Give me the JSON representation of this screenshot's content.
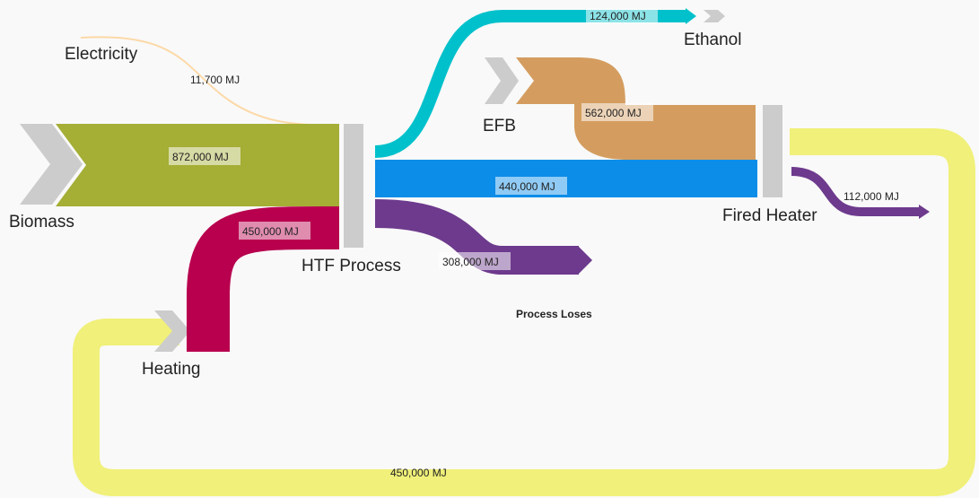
{
  "nodes": [
    {
      "label": "Electricity"
    },
    {
      "label": "Biomass"
    },
    {
      "label": "HTF Process"
    },
    {
      "label": "EFB"
    },
    {
      "label": "Ethanol"
    },
    {
      "label": "Fired Heater"
    },
    {
      "label": "Heating"
    },
    {
      "label": "Process Loses"
    }
  ],
  "links": [
    {
      "label": "11,700 MJ"
    },
    {
      "label": "872,000 MJ"
    },
    {
      "label": "450,000 MJ"
    },
    {
      "label": "124,000 MJ"
    },
    {
      "label": "562,000 MJ"
    },
    {
      "label": "440,000 MJ"
    },
    {
      "label": "308,000 MJ"
    },
    {
      "label": "112,000 MJ"
    },
    {
      "label": "450,000 MJ"
    }
  ]
}
